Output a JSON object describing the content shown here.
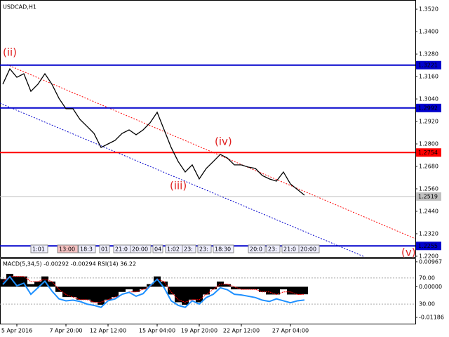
{
  "chart_data": [
    {
      "type": "line",
      "title": "USDCAD,H1",
      "categories": [
        null,
        null,
        "5 Apr 2016",
        null,
        null,
        null,
        null,
        null,
        null,
        "7 Apr 20:00",
        null,
        null,
        null,
        null,
        null,
        "12 Apr 12:00",
        null,
        null,
        null,
        null,
        null,
        null,
        "15 Apr 04:00",
        null,
        null,
        null,
        null,
        null,
        "19 Apr 20:00",
        null,
        null,
        null,
        null,
        null,
        "22 Apr 12:00",
        null,
        null,
        null,
        null,
        null,
        null,
        "27 Apr 04:00",
        null,
        null
      ],
      "series": [
        {
          "name": "USDCAD",
          "color": "#000000",
          "values": [
            1.3119,
            1.3201,
            1.3156,
            1.3175,
            1.3081,
            1.3119,
            1.3175,
            1.3119,
            1.3044,
            1.2988,
            1.2988,
            1.2931,
            1.2894,
            1.2856,
            1.2781,
            1.28,
            1.2819,
            1.2856,
            1.2875,
            1.2849,
            1.2875,
            1.2913,
            1.2969,
            1.2875,
            1.2781,
            1.2706,
            1.265,
            1.2688,
            1.2613,
            1.2669,
            1.2706,
            1.2744,
            1.2725,
            1.2688,
            1.2688,
            1.2676,
            1.2669,
            1.2631,
            1.2613,
            1.2601,
            1.265,
            1.2586,
            1.2556,
            1.2526
          ]
        }
      ],
      "ylim": [
        1.2196,
        1.3569
      ],
      "yticks": [
        {
          "value": 1.352,
          "label": "1.3520"
        },
        {
          "value": 1.34,
          "label": "1.3400"
        },
        {
          "value": 1.328,
          "label": "1.3280"
        },
        {
          "value": 1.316,
          "label": "1.3160"
        },
        {
          "value": 1.304,
          "label": "1.3040"
        },
        {
          "value": 1.292,
          "label": "1.2920"
        },
        {
          "value": 1.28,
          "label": "1.2800"
        },
        {
          "value": 1.268,
          "label": "1.2680"
        },
        {
          "value": 1.256,
          "label": "1.2560"
        },
        {
          "value": 1.244,
          "label": "1.2440"
        },
        {
          "value": 1.232,
          "label": "1.2320"
        },
        {
          "value": 1.22,
          "label": "1.2200"
        }
      ],
      "levels": [
        {
          "value": 1.3221,
          "color": "#0000cc"
        },
        {
          "value": 1.2992,
          "color": "#0000cc"
        },
        {
          "value": 1.2754,
          "color": "#ff0000"
        },
        {
          "value": 1.2519,
          "color": "#c0c0c0"
        },
        {
          "value": 1.2255,
          "color": "#0000cc"
        }
      ],
      "annotations": [
        "(ii)",
        "(iii)",
        "(iv)",
        "(v)"
      ],
      "time_boxes": [
        "1:01",
        "13:00",
        "18:3",
        "01",
        "21:0",
        "20:00",
        "04",
        "1:02",
        "23:",
        "23:",
        "18:30",
        "20:0",
        "23:",
        "21:0",
        "20:00"
      ]
    },
    {
      "type": "bar",
      "title": "MACD(5,34,5) -0.00292 -0.00294 RSI(14) 36.22",
      "series": [
        {
          "name": "MACD",
          "color": "#000000",
          "values": [
            0.003,
            0.005,
            0.004,
            0.004,
            0.001,
            0.002,
            0.004,
            0.002,
            -0.002,
            -0.004,
            -0.004,
            -0.005,
            -0.005,
            -0.006,
            -0.007,
            -0.005,
            -0.004,
            -0.002,
            -0.001,
            -0.002,
            -0.001,
            0.001,
            0.004,
            0.002,
            -0.003,
            -0.006,
            -0.007,
            -0.005,
            -0.006,
            -0.003,
            -0.001,
            0.002,
            0.001,
            -0.001,
            -0.001,
            -0.001,
            -0.001,
            -0.002,
            -0.003,
            -0.003,
            -0.001,
            -0.003,
            -0.003,
            -0.00292
          ]
        },
        {
          "name": "Signal",
          "color": "#ff0000",
          "values": [
            0.002,
            0.004,
            0.004,
            0.004,
            0.002,
            0.002,
            0.003,
            0.002,
            -0.001,
            -0.003,
            -0.004,
            -0.005,
            -0.005,
            -0.006,
            -0.006,
            -0.005,
            -0.004,
            -0.003,
            -0.002,
            -0.002,
            -0.001,
            0,
            0.003,
            0.002,
            -0.002,
            -0.005,
            -0.006,
            -0.005,
            -0.005,
            -0.003,
            -0.001,
            0.001,
            0.001,
            0,
            -0.001,
            -0.001,
            -0.001,
            -0.002,
            -0.002,
            -0.003,
            -0.002,
            -0.002,
            -0.003,
            -0.00294
          ]
        },
        {
          "name": "RSI",
          "color": "#1e90ff",
          "axis": "y2",
          "values": [
            60,
            72,
            58,
            62,
            45,
            55,
            65,
            50,
            38,
            35,
            36,
            34,
            30,
            28,
            25,
            35,
            38,
            45,
            48,
            42,
            46,
            58,
            68,
            55,
            35,
            28,
            25,
            35,
            30,
            40,
            45,
            55,
            52,
            45,
            44,
            42,
            40,
            36,
            34,
            38,
            35,
            32,
            35,
            36.22
          ]
        }
      ],
      "ylim": [
        -0.0143,
        0.011
      ],
      "yticks": [
        {
          "value": 0.00967,
          "label": "0.00967"
        },
        {
          "value": 0,
          "label": "0.00000"
        },
        {
          "value": -0.01186,
          "label": "-0.01186"
        }
      ],
      "y2lim": [
        0,
        100
      ],
      "y2ticks": [
        {
          "value": 70,
          "label": "70.00"
        },
        {
          "value": 30,
          "label": "30.00"
        }
      ]
    }
  ]
}
